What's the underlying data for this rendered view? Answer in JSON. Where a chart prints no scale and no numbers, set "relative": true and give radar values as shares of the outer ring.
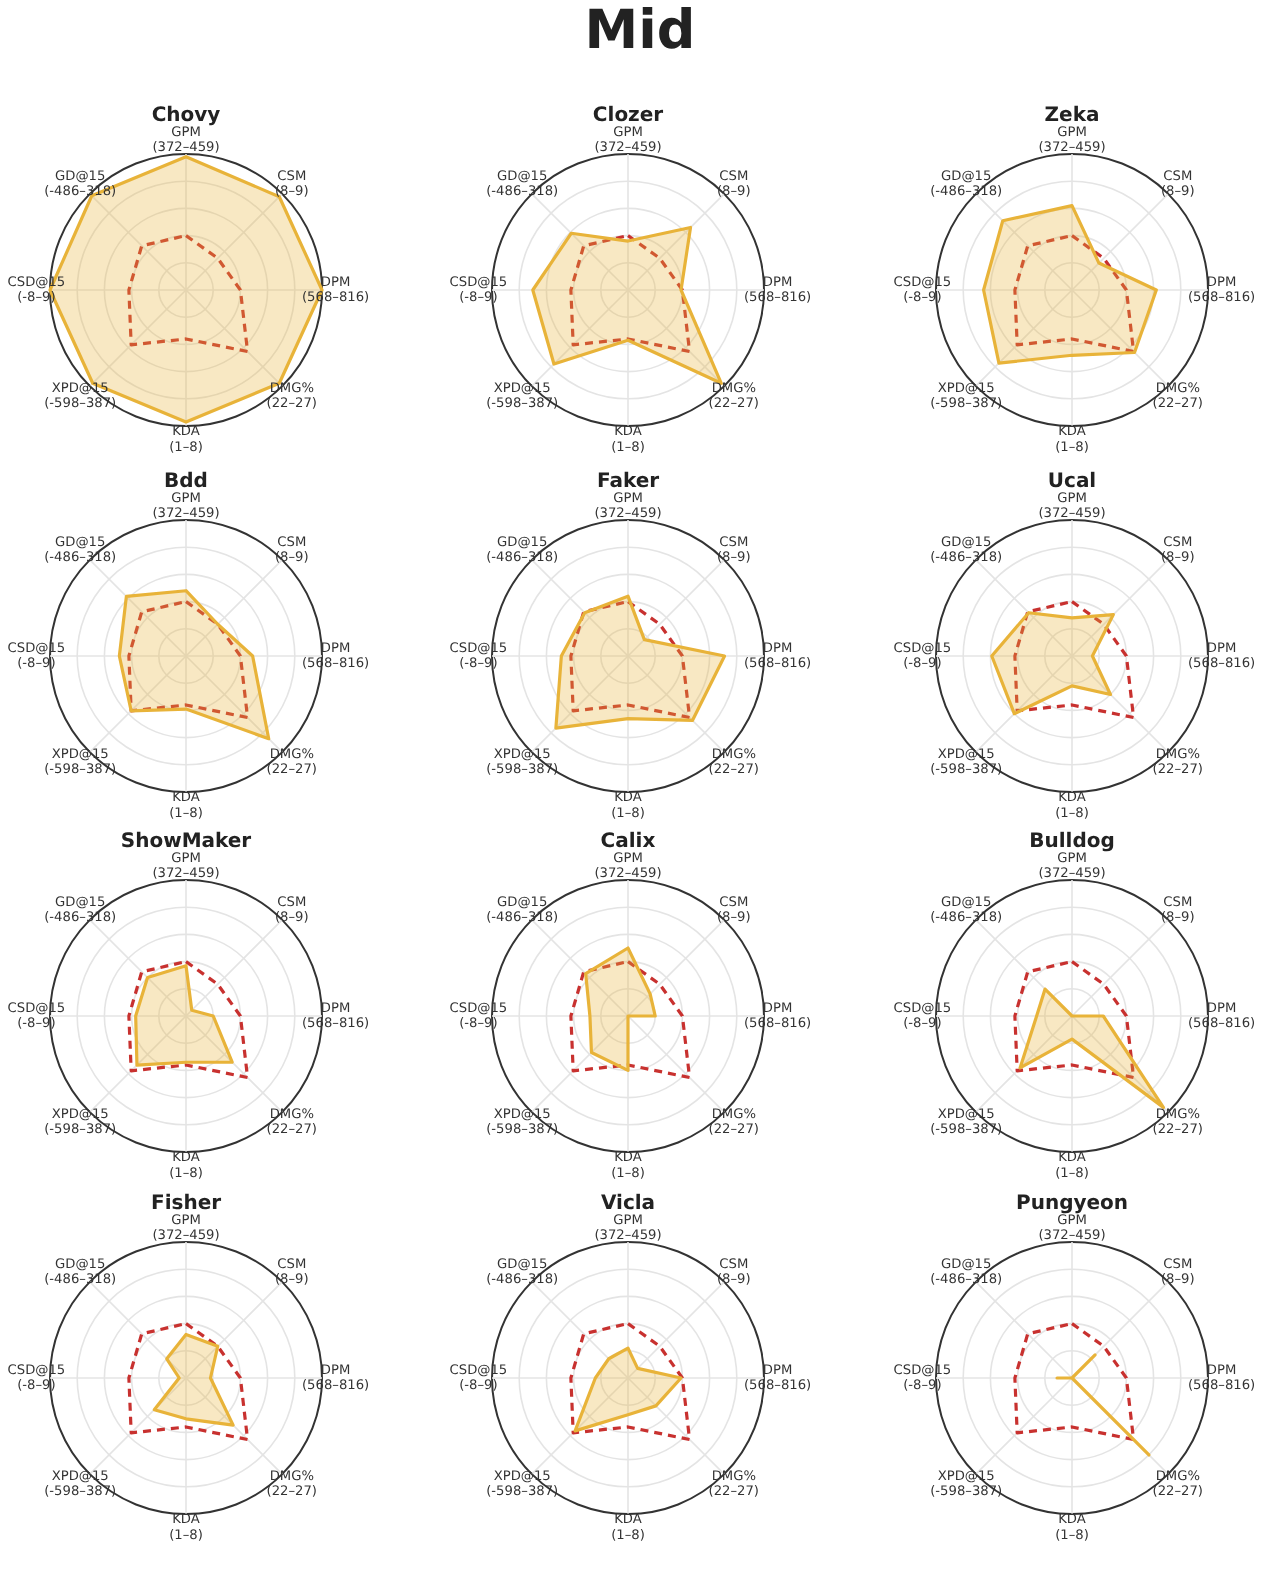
{
  "chart_data": [
    {
      "type": "other",
      "title": "Mid"
    },
    {
      "type": "radar",
      "title": "Chovy",
      "relative": true,
      "grid": true,
      "categories": [
        "GPM\n(372–459)",
        "CSM\n(8–9)",
        "DPM\n(568–816)",
        "DMG%\n(22–27)",
        "KDA\n(1–8)",
        "XPD@15\n(-598–387)",
        "CSD@15\n(-8–9)",
        "GD@15\n(-486–318)"
      ],
      "series": [
        {
          "color": "#e8b339",
          "values": [
            0.98,
            0.97,
            1.0,
            0.97,
            0.97,
            0.97,
            1.0,
            0.98
          ]
        },
        {
          "color": "#c8312f",
          "line_style": "dashed",
          "values": [
            0.4,
            0.33,
            0.4,
            0.64,
            0.36,
            0.57,
            0.42,
            0.46
          ]
        }
      ]
    },
    {
      "type": "radar",
      "title": "Clozer",
      "relative": true,
      "grid": true,
      "categories": [
        "GPM\n(372–459)",
        "CSM\n(8–9)",
        "DPM\n(568–816)",
        "DMG%\n(22–27)",
        "KDA\n(1–8)",
        "XPD@15\n(-598–387)",
        "CSD@15\n(-8–9)",
        "GD@15\n(-486–318)"
      ],
      "series": [
        {
          "color": "#e8b339",
          "values": [
            0.36,
            0.65,
            0.39,
            0.97,
            0.37,
            0.77,
            0.7,
            0.59
          ]
        },
        {
          "color": "#c8312f",
          "line_style": "dashed",
          "values": [
            0.4,
            0.33,
            0.4,
            0.64,
            0.36,
            0.57,
            0.42,
            0.46
          ]
        }
      ]
    },
    {
      "type": "radar",
      "title": "Zeka",
      "relative": true,
      "grid": true,
      "categories": [
        "GPM\n(372–459)",
        "CSM\n(8–9)",
        "DPM\n(568–816)",
        "DMG%\n(22–27)",
        "KDA\n(1–8)",
        "XPD@15\n(-598–387)",
        "CSD@15\n(-8–9)",
        "GD@15\n(-486–318)"
      ],
      "series": [
        {
          "color": "#e8b339",
          "values": [
            0.62,
            0.28,
            0.62,
            0.65,
            0.48,
            0.76,
            0.65,
            0.72
          ]
        },
        {
          "color": "#c8312f",
          "line_style": "dashed",
          "values": [
            0.4,
            0.33,
            0.4,
            0.64,
            0.36,
            0.57,
            0.42,
            0.46
          ]
        }
      ]
    },
    {
      "type": "radar",
      "title": "Bdd",
      "relative": true,
      "grid": true,
      "categories": [
        "GPM\n(372–459)",
        "CSM\n(8–9)",
        "DPM\n(568–816)",
        "DMG%\n(22–27)",
        "KDA\n(1–8)",
        "XPD@15\n(-598–387)",
        "CSD@15\n(-8–9)",
        "GD@15\n(-486–318)"
      ],
      "series": [
        {
          "color": "#e8b339",
          "values": [
            0.48,
            0.33,
            0.49,
            0.86,
            0.39,
            0.57,
            0.49,
            0.62
          ]
        },
        {
          "color": "#c8312f",
          "line_style": "dashed",
          "values": [
            0.4,
            0.33,
            0.4,
            0.64,
            0.36,
            0.57,
            0.42,
            0.46
          ]
        }
      ]
    },
    {
      "type": "radar",
      "title": "Faker",
      "relative": true,
      "grid": true,
      "categories": [
        "GPM\n(372–459)",
        "CSM\n(8–9)",
        "DPM\n(568–816)",
        "DMG%\n(22–27)",
        "KDA\n(1–8)",
        "XPD@15\n(-598–387)",
        "CSD@15\n(-8–9)",
        "GD@15\n(-486–318)"
      ],
      "series": [
        {
          "color": "#e8b339",
          "values": [
            0.44,
            0.17,
            0.71,
            0.67,
            0.46,
            0.75,
            0.49,
            0.45
          ]
        },
        {
          "color": "#c8312f",
          "line_style": "dashed",
          "values": [
            0.4,
            0.33,
            0.4,
            0.64,
            0.36,
            0.57,
            0.42,
            0.46
          ]
        }
      ]
    },
    {
      "type": "radar",
      "title": "Ucal",
      "relative": true,
      "grid": true,
      "categories": [
        "GPM\n(372–459)",
        "CSM\n(8–9)",
        "DPM\n(568–816)",
        "DMG%\n(22–27)",
        "KDA\n(1–8)",
        "XPD@15\n(-598–387)",
        "CSD@15\n(-8–9)",
        "GD@15\n(-486–318)"
      ],
      "series": [
        {
          "color": "#e8b339",
          "values": [
            0.28,
            0.43,
            0.15,
            0.4,
            0.22,
            0.6,
            0.59,
            0.45
          ]
        },
        {
          "color": "#c8312f",
          "line_style": "dashed",
          "values": [
            0.4,
            0.33,
            0.4,
            0.64,
            0.36,
            0.57,
            0.42,
            0.46
          ]
        }
      ]
    },
    {
      "type": "radar",
      "title": "ShowMaker",
      "relative": true,
      "grid": true,
      "categories": [
        "GPM\n(372–459)",
        "CSM\n(8–9)",
        "DPM\n(568–816)",
        "DMG%\n(22–27)",
        "KDA\n(1–8)",
        "XPD@15\n(-598–387)",
        "CSD@15\n(-8–9)",
        "GD@15\n(-486–318)"
      ],
      "series": [
        {
          "color": "#e8b339",
          "values": [
            0.37,
            0.06,
            0.2,
            0.48,
            0.34,
            0.51,
            0.37,
            0.4
          ]
        },
        {
          "color": "#c8312f",
          "line_style": "dashed",
          "values": [
            0.4,
            0.33,
            0.4,
            0.64,
            0.36,
            0.57,
            0.42,
            0.46
          ]
        }
      ]
    },
    {
      "type": "radar",
      "title": "Calix",
      "relative": true,
      "grid": true,
      "categories": [
        "GPM\n(372–459)",
        "CSM\n(8–9)",
        "DPM\n(568–816)",
        "DMG%\n(22–27)",
        "KDA\n(1–8)",
        "XPD@15\n(-598–387)",
        "CSD@15\n(-8–9)",
        "GD@15\n(-486–318)"
      ],
      "series": [
        {
          "color": "#e8b339",
          "values": [
            0.5,
            0.23,
            0.2,
            0,
            0.4,
            0.38,
            0.28,
            0.44
          ]
        },
        {
          "color": "#c8312f",
          "line_style": "dashed",
          "values": [
            0.4,
            0.33,
            0.4,
            0.64,
            0.36,
            0.57,
            0.42,
            0.46
          ]
        }
      ]
    },
    {
      "type": "radar",
      "title": "Bulldog",
      "relative": true,
      "grid": true,
      "categories": [
        "GPM\n(372–459)",
        "CSM\n(8–9)",
        "DPM\n(568–816)",
        "DMG%\n(22–27)",
        "KDA\n(1–8)",
        "XPD@15\n(-598–387)",
        "CSD@15\n(-8–9)",
        "GD@15\n(-486–318)"
      ],
      "series": [
        {
          "color": "#e8b339",
          "values": [
            0,
            0,
            0.23,
            0.95,
            0.17,
            0.54,
            0.26,
            0.28
          ]
        },
        {
          "color": "#c8312f",
          "line_style": "dashed",
          "values": [
            0.4,
            0.33,
            0.4,
            0.64,
            0.36,
            0.57,
            0.42,
            0.46
          ]
        }
      ]
    },
    {
      "type": "radar",
      "title": "Fisher",
      "relative": true,
      "grid": true,
      "categories": [
        "GPM\n(372–459)",
        "CSM\n(8–9)",
        "DPM\n(568–816)",
        "DMG%\n(22–27)",
        "KDA\n(1–8)",
        "XPD@15\n(-598–387)",
        "CSD@15\n(-8–9)",
        "GD@15\n(-486–318)"
      ],
      "series": [
        {
          "color": "#e8b339",
          "values": [
            0.32,
            0.33,
            0.18,
            0.49,
            0.3,
            0.33,
            0.05,
            0.2
          ]
        },
        {
          "color": "#c8312f",
          "line_style": "dashed",
          "values": [
            0.4,
            0.33,
            0.4,
            0.64,
            0.36,
            0.57,
            0.42,
            0.46
          ]
        }
      ]
    },
    {
      "type": "radar",
      "title": "Vicla",
      "relative": true,
      "grid": true,
      "categories": [
        "GPM\n(372–459)",
        "CSM\n(8–9)",
        "DPM\n(568–816)",
        "DMG%\n(22–27)",
        "KDA\n(1–8)",
        "XPD@15\n(-598–387)",
        "CSD@15\n(-8–9)",
        "GD@15\n(-486–318)"
      ],
      "series": [
        {
          "color": "#e8b339",
          "values": [
            0.22,
            0.1,
            0.39,
            0.29,
            0.27,
            0.55,
            0.24,
            0.2
          ]
        },
        {
          "color": "#c8312f",
          "line_style": "dashed",
          "values": [
            0.4,
            0.33,
            0.4,
            0.64,
            0.36,
            0.57,
            0.42,
            0.46
          ]
        }
      ]
    },
    {
      "type": "radar",
      "title": "Pungyeon",
      "relative": true,
      "grid": true,
      "categories": [
        "GPM\n(372–459)",
        "CSM\n(8–9)",
        "DPM\n(568–816)",
        "DMG%\n(22–27)",
        "KDA\n(1–8)",
        "XPD@15\n(-598–387)",
        "CSD@15\n(-8–9)",
        "GD@15\n(-486–318)"
      ],
      "series": [
        {
          "color": "#e8b339",
          "values": [
            0,
            0.24,
            0,
            0.8,
            0,
            0,
            0.11,
            0
          ]
        },
        {
          "color": "#c8312f",
          "line_style": "dashed",
          "values": [
            0.4,
            0.33,
            0.4,
            0.64,
            0.36,
            0.57,
            0.42,
            0.46
          ]
        }
      ]
    }
  ]
}
